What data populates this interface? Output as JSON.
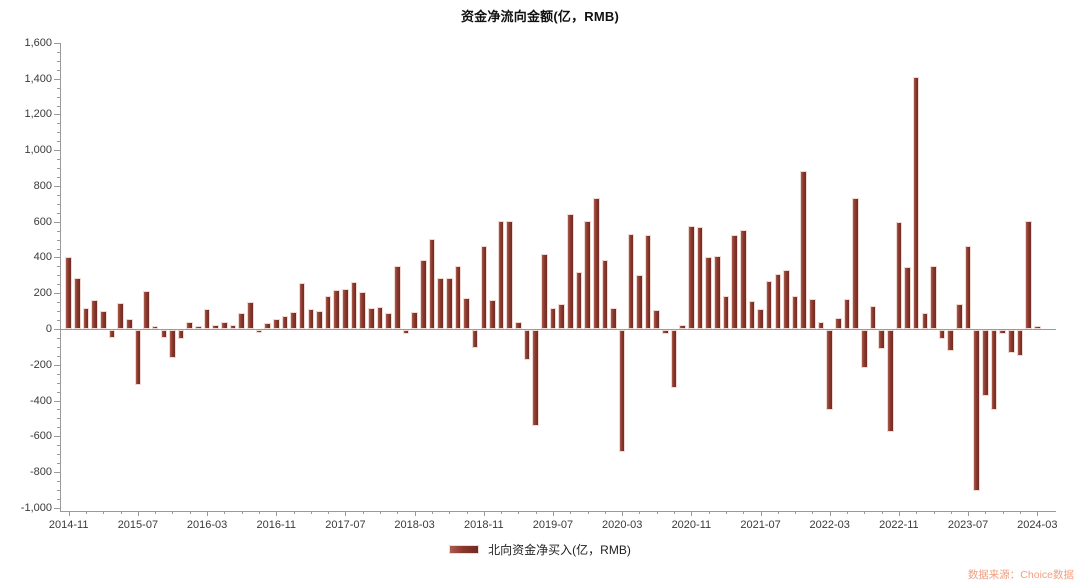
{
  "chart_data": {
    "type": "bar",
    "title": "资金净流向金额(亿，RMB)",
    "series_name": "北向资金净买入(亿，RMB)",
    "ylabel": "",
    "xlabel": "",
    "ylim": [
      -1000,
      1600
    ],
    "grid": false,
    "legend_position": "bottom-center",
    "bar_color": "#8b382e",
    "y_ticks": [
      {
        "v": 1600,
        "label": "1,600"
      },
      {
        "v": 1400,
        "label": "1,400"
      },
      {
        "v": 1200,
        "label": "1,200"
      },
      {
        "v": 1000,
        "label": "1,000"
      },
      {
        "v": 800,
        "label": "800"
      },
      {
        "v": 600,
        "label": "600"
      },
      {
        "v": 400,
        "label": "400"
      },
      {
        "v": 200,
        "label": "200"
      },
      {
        "v": 0,
        "label": "0"
      },
      {
        "v": -200,
        "label": "-200"
      },
      {
        "v": -400,
        "label": "-400"
      },
      {
        "v": -600,
        "label": "-600"
      },
      {
        "v": -800,
        "label": "-800"
      },
      {
        "v": -1000,
        "label": "-1,000"
      }
    ],
    "x_major_label_every": 8,
    "x_minor_tick_every": 2,
    "x": [
      "2014-11",
      "2014-12",
      "2015-01",
      "2015-02",
      "2015-03",
      "2015-04",
      "2015-05",
      "2015-06",
      "2015-07",
      "2015-08",
      "2015-09",
      "2015-10",
      "2015-11",
      "2015-12",
      "2016-01",
      "2016-02",
      "2016-03",
      "2016-04",
      "2016-05",
      "2016-06",
      "2016-07",
      "2016-08",
      "2016-09",
      "2016-10",
      "2016-11",
      "2016-12",
      "2017-01",
      "2017-02",
      "2017-03",
      "2017-04",
      "2017-05",
      "2017-06",
      "2017-07",
      "2017-08",
      "2017-09",
      "2017-10",
      "2017-11",
      "2017-12",
      "2018-01",
      "2018-02",
      "2018-03",
      "2018-04",
      "2018-05",
      "2018-06",
      "2018-07",
      "2018-08",
      "2018-09",
      "2018-10",
      "2018-11",
      "2018-12",
      "2019-01",
      "2019-02",
      "2019-03",
      "2019-04",
      "2019-05",
      "2019-06",
      "2019-07",
      "2019-08",
      "2019-09",
      "2019-10",
      "2019-11",
      "2019-12",
      "2020-01",
      "2020-02",
      "2020-03",
      "2020-04",
      "2020-05",
      "2020-06",
      "2020-07",
      "2020-08",
      "2020-09",
      "2020-10",
      "2020-11",
      "2020-12",
      "2021-01",
      "2021-02",
      "2021-03",
      "2021-04",
      "2021-05",
      "2021-06",
      "2021-07",
      "2021-08",
      "2021-09",
      "2021-10",
      "2021-11",
      "2021-12",
      "2022-01",
      "2022-02",
      "2022-03",
      "2022-04",
      "2022-05",
      "2022-06",
      "2022-07",
      "2022-08",
      "2022-09",
      "2022-10",
      "2022-11",
      "2022-12",
      "2023-01",
      "2023-02",
      "2023-03",
      "2023-04",
      "2023-05",
      "2023-06",
      "2023-07",
      "2023-08",
      "2023-09",
      "2023-10",
      "2023-11",
      "2023-12",
      "2024-01",
      "2024-02",
      "2024-03"
    ],
    "values": [
      405,
      285,
      115,
      160,
      100,
      -45,
      145,
      55,
      -310,
      215,
      15,
      -45,
      -155,
      -50,
      40,
      15,
      110,
      25,
      40,
      25,
      90,
      150,
      -15,
      35,
      55,
      70,
      95,
      255,
      110,
      100,
      185,
      220,
      225,
      265,
      205,
      115,
      125,
      90,
      355,
      -20,
      95,
      385,
      505,
      285,
      285,
      350,
      175,
      -100,
      465,
      160,
      605,
      605,
      40,
      -170,
      -535,
      420,
      120,
      140,
      645,
      320,
      605,
      730,
      385,
      115,
      -680,
      530,
      300,
      525,
      105,
      -25,
      -325,
      20,
      575,
      570,
      400,
      410,
      185,
      525,
      555,
      155,
      110,
      270,
      305,
      330,
      185,
      885,
      170,
      40,
      -450,
      60,
      170,
      730,
      -210,
      130,
      -105,
      -570,
      600,
      345,
      1410,
      90,
      350,
      -50,
      -120,
      140,
      465,
      -900,
      -370,
      -445,
      -20,
      -130,
      -145,
      605,
      15
    ]
  },
  "legend": {
    "label": "北向资金净买入(亿，RMB)"
  },
  "footer": {
    "source": "数据来源：Choice数据"
  }
}
